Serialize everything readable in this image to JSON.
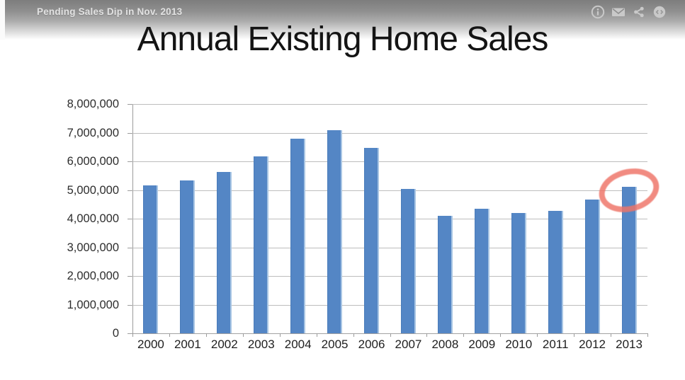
{
  "player_bar": {
    "title": "Pending Sales Dip in Nov. 2013",
    "actions": [
      {
        "name": "info",
        "label": "Info"
      },
      {
        "name": "email",
        "label": "Email"
      },
      {
        "name": "share",
        "label": "Share"
      },
      {
        "name": "embed",
        "label": "Embed"
      }
    ]
  },
  "chart_data": {
    "type": "bar",
    "title": "Annual Existing Home Sales",
    "categories": [
      "2000",
      "2001",
      "2002",
      "2003",
      "2004",
      "2005",
      "2006",
      "2007",
      "2008",
      "2009",
      "2010",
      "2011",
      "2012",
      "2013"
    ],
    "values": [
      5170000,
      5330000,
      5630000,
      6180000,
      6780000,
      7080000,
      6480000,
      5030000,
      4110000,
      4340000,
      4190000,
      4260000,
      4660000,
      5120000
    ],
    "xlabel": "",
    "ylabel": "",
    "ylim": [
      0,
      8000000
    ],
    "ytick_values": [
      0,
      1000000,
      2000000,
      3000000,
      4000000,
      5000000,
      6000000,
      7000000,
      8000000
    ],
    "ytick_labels": [
      "0",
      "1,000,000",
      "2,000,000",
      "3,000,000",
      "4,000,000",
      "5,000,000",
      "6,000,000",
      "7,000,000",
      "8,000,000"
    ],
    "grid": true,
    "legend": false,
    "bar_color": "#5486c5",
    "annotation": {
      "shape": "hand-drawn-ellipse",
      "target_category": "2013",
      "color": "#ee7368"
    }
  }
}
